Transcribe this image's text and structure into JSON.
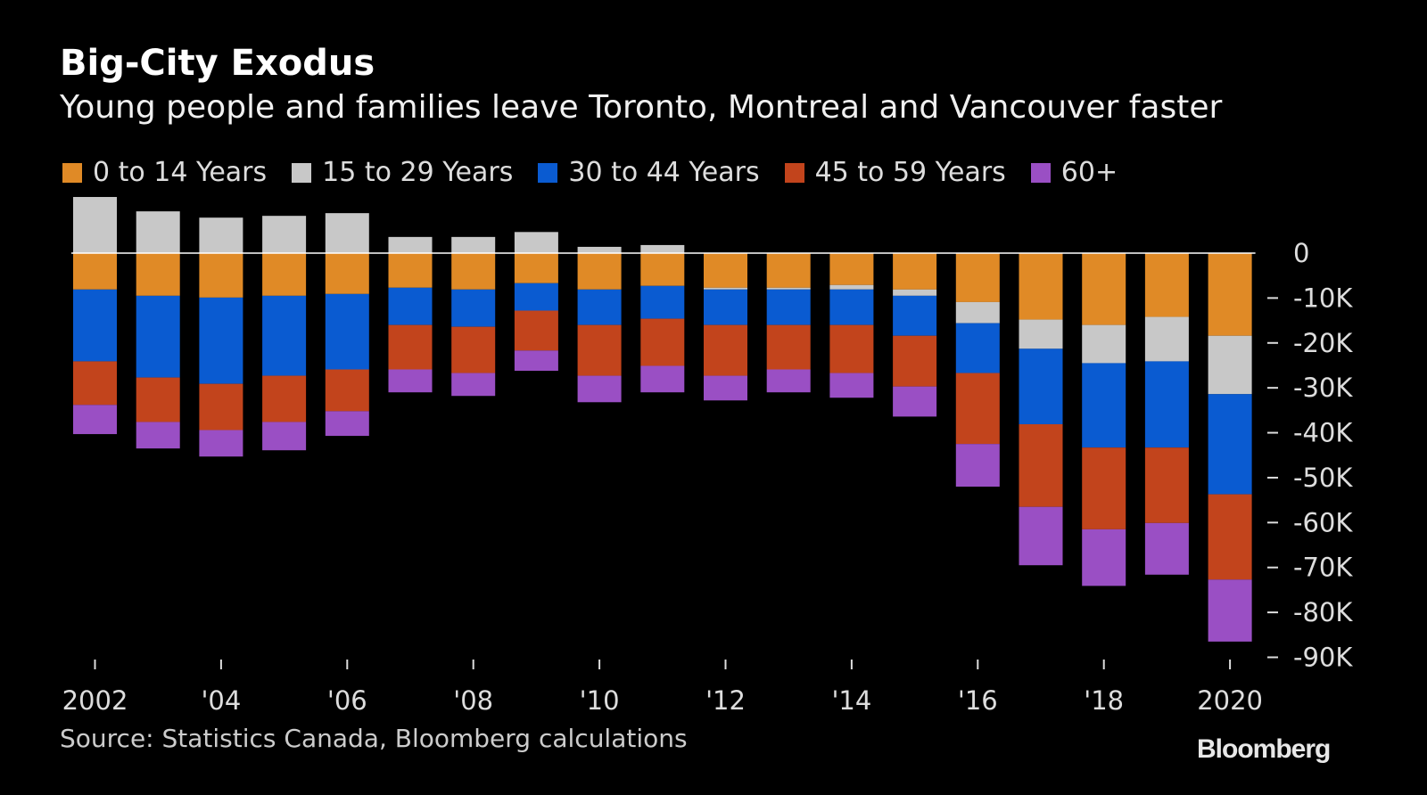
{
  "chart_data": {
    "type": "bar",
    "stacked": true,
    "title": "Big-City Exodus",
    "subtitle": "Young people and families leave Toronto, Montreal and Vancouver faster",
    "categories": [
      2002,
      2003,
      2004,
      2005,
      2006,
      2007,
      2008,
      2009,
      2010,
      2011,
      2012,
      2013,
      2014,
      2015,
      2016,
      2017,
      2018,
      2019,
      2020
    ],
    "x_tick_labels": [
      "2002",
      "'04",
      "'06",
      "'08",
      "'10",
      "'12",
      "'14",
      "'16",
      "'18",
      "2020"
    ],
    "x_tick_values": [
      2002,
      2004,
      2006,
      2008,
      2010,
      2012,
      2014,
      2016,
      2018,
      2020
    ],
    "y_tick_labels": [
      "0",
      "-10K",
      "-20K",
      "-30K",
      "-40K",
      "-50K",
      "-60K",
      "-70K",
      "-80K",
      "-90K"
    ],
    "y_tick_values": [
      0,
      -10,
      -20,
      -30,
      -40,
      -50,
      -60,
      -70,
      -80,
      -90
    ],
    "ylim": [
      -90,
      13
    ],
    "units": "thousands",
    "legend_placement": "top-left",
    "grid": false,
    "series": [
      {
        "name": "0 to 14 Years",
        "color": "#e08a26",
        "values": [
          -8.1,
          -9.5,
          -9.9,
          -9.5,
          -9.1,
          -7.7,
          -8.1,
          -6.7,
          -8.1,
          -7.3,
          -7.7,
          -7.7,
          -7.1,
          -8.1,
          -10.9,
          -14.8,
          -16.0,
          -14.2,
          -18.4
        ]
      },
      {
        "name": "15 to 29 Years",
        "color": "#c8c8c8",
        "values": [
          12.5,
          9.3,
          7.9,
          8.3,
          8.9,
          3.6,
          3.6,
          4.7,
          1.4,
          1.8,
          -0.4,
          -0.4,
          -1.0,
          -1.4,
          -4.7,
          -6.5,
          -8.5,
          -9.9,
          -13.0
        ]
      },
      {
        "name": "30 to 44 Years",
        "color": "#0a5bd1",
        "values": [
          -16.0,
          -18.2,
          -19.2,
          -17.8,
          -16.8,
          -8.3,
          -8.3,
          -6.1,
          -7.9,
          -7.3,
          -7.9,
          -7.9,
          -7.9,
          -8.9,
          -11.1,
          -16.8,
          -18.8,
          -19.2,
          -22.3
        ]
      },
      {
        "name": "45 to 59 Years",
        "color": "#c2441c",
        "values": [
          -9.7,
          -9.9,
          -10.3,
          -10.3,
          -9.3,
          -9.9,
          -10.3,
          -8.9,
          -11.3,
          -10.5,
          -11.3,
          -9.9,
          -10.7,
          -11.3,
          -15.8,
          -18.4,
          -18.2,
          -16.8,
          -19.0
        ]
      },
      {
        "name": "60+",
        "color": "#9a4fc4",
        "values": [
          -6.5,
          -5.9,
          -5.9,
          -6.3,
          -5.5,
          -5.1,
          -5.1,
          -4.5,
          -5.9,
          -5.9,
          -5.5,
          -5.1,
          -5.5,
          -6.7,
          -9.5,
          -13.0,
          -12.6,
          -11.5,
          -13.8
        ]
      }
    ],
    "source": "Source: Statistics Canada, Bloomberg calculations",
    "logo": "Bloomberg"
  }
}
